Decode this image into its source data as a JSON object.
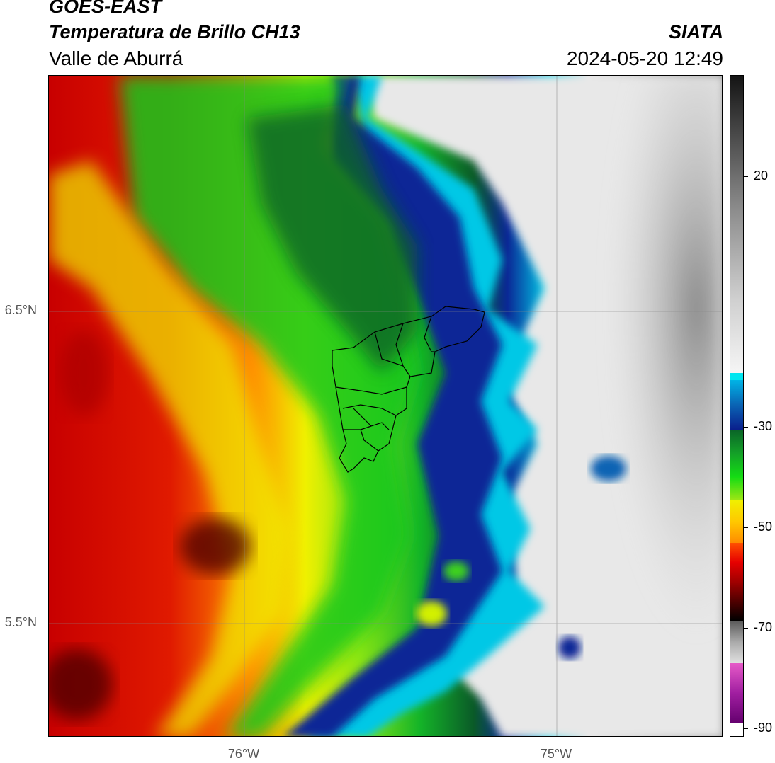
{
  "header": {
    "satellite": "GOES-EAST",
    "product": "Temperatura de Brillo CH13",
    "region": "Valle de Aburrá",
    "agency": "SIATA",
    "datetime": "2024-05-20 12:49"
  },
  "map": {
    "lat_labels": [
      "6.5°N",
      "5.5°N"
    ],
    "lon_labels": [
      "76°W",
      "75°W"
    ],
    "gridlines": true,
    "overlay": "Valle de Aburrá municipal boundaries"
  },
  "colorbar": {
    "ticks": [
      "20",
      "-30",
      "-50",
      "-70",
      "-90"
    ],
    "colors": {
      "warm_gray_top": "#141414",
      "light_gray": "#f5f5f5",
      "cyan": "#00e6f0",
      "dark_blue": "#0a1e8c",
      "dark_green": "#0a6428",
      "green": "#14dc14",
      "yellow": "#f0f000",
      "orange": "#ff8c00",
      "red": "#e60000",
      "dark_red": "#500000",
      "magenta": "#e65ac8",
      "purple": "#64006e"
    }
  }
}
